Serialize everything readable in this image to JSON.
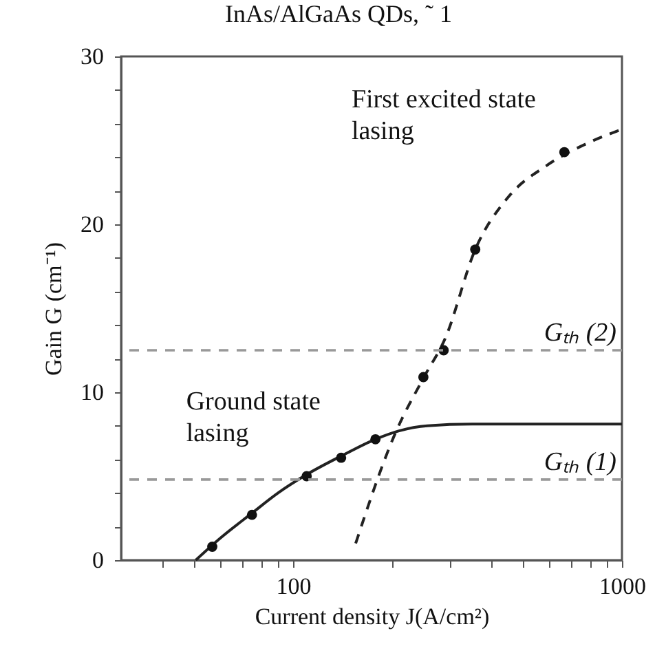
{
  "chart_data": {
    "type": "line",
    "title": "InAs/AlGaAs QDs, ˜ 1",
    "xlabel": "Current density J(A/cm²)",
    "ylabel": "Gain G (cm⁻¹)",
    "log": "x",
    "xlim": [
      30,
      1000
    ],
    "ylim": [
      0,
      30
    ],
    "xticks": [
      {
        "value": 40,
        "label": null
      },
      {
        "value": 50,
        "label": null
      },
      {
        "value": 60,
        "label": null
      },
      {
        "value": 70,
        "label": null
      },
      {
        "value": 80,
        "label": null
      },
      {
        "value": 90,
        "label": null
      },
      100,
      {
        "value": 200,
        "label": null
      },
      {
        "value": 300,
        "label": null
      },
      {
        "value": 400,
        "label": null
      },
      {
        "value": 500,
        "label": null
      },
      {
        "value": 600,
        "label": null
      },
      {
        "value": 700,
        "label": null
      },
      {
        "value": 800,
        "label": null
      },
      {
        "value": 900,
        "label": null
      },
      1000
    ],
    "yticks": [
      0,
      {
        "value": 2,
        "label": null
      },
      {
        "value": 4,
        "label": null
      },
      {
        "value": 6,
        "label": null
      },
      {
        "value": 8,
        "label": null
      },
      10,
      {
        "value": 12,
        "label": null
      },
      {
        "value": 14,
        "label": null
      },
      {
        "value": 16,
        "label": null
      },
      {
        "value": 18,
        "label": null
      },
      20,
      {
        "value": 22,
        "label": null
      },
      {
        "value": 24,
        "label": null
      },
      {
        "value": 26,
        "label": null
      },
      {
        "value": 28,
        "label": null
      },
      30
    ],
    "grid": false,
    "series": [
      {
        "color": "#222222",
        "line_style": "solid",
        "marker": "none",
        "x": [
          50.6,
          60,
          75,
          90,
          110,
          140,
          178,
          210,
          256,
          350,
          500,
          1000
        ],
        "values": [
          0,
          1.3,
          2.8,
          4.0,
          5.1,
          6.2,
          7.2,
          7.7,
          8.0,
          8.1,
          8.1,
          8.1
        ]
      },
      {
        "color": "#222222",
        "line_style": "dashed",
        "marker": "none",
        "x": [
          155,
          205,
          250,
          290,
          358,
          450,
          590,
          800,
          980
        ],
        "values": [
          1.0,
          7.6,
          10.9,
          13.2,
          18.5,
          21.6,
          23.5,
          24.9,
          25.6
        ]
      },
      {
        "type": "scatter",
        "color": "#111111",
        "marker": "circle",
        "x": [
          56.8,
          75,
          110,
          140,
          178
        ],
        "values": [
          0.8,
          2.7,
          5.0,
          6.1,
          7.2
        ]
      },
      {
        "type": "scatter",
        "color": "#111111",
        "marker": "circle",
        "x": [
          249,
          287,
          358,
          668
        ],
        "values": [
          10.9,
          12.5,
          18.5,
          24.3
        ]
      }
    ],
    "ref_lines": [
      {
        "axis": "y",
        "value": 12.5,
        "label": "Gₜₕ (2)",
        "color": "#999999",
        "line_style": "dashed"
      },
      {
        "axis": "y",
        "value": 4.8,
        "label": "Gₜₕ (1)",
        "color": "#999999",
        "line_style": "dashed"
      }
    ],
    "annotations": [
      "First excited state\nlasing",
      "Ground state\nlasing"
    ]
  }
}
